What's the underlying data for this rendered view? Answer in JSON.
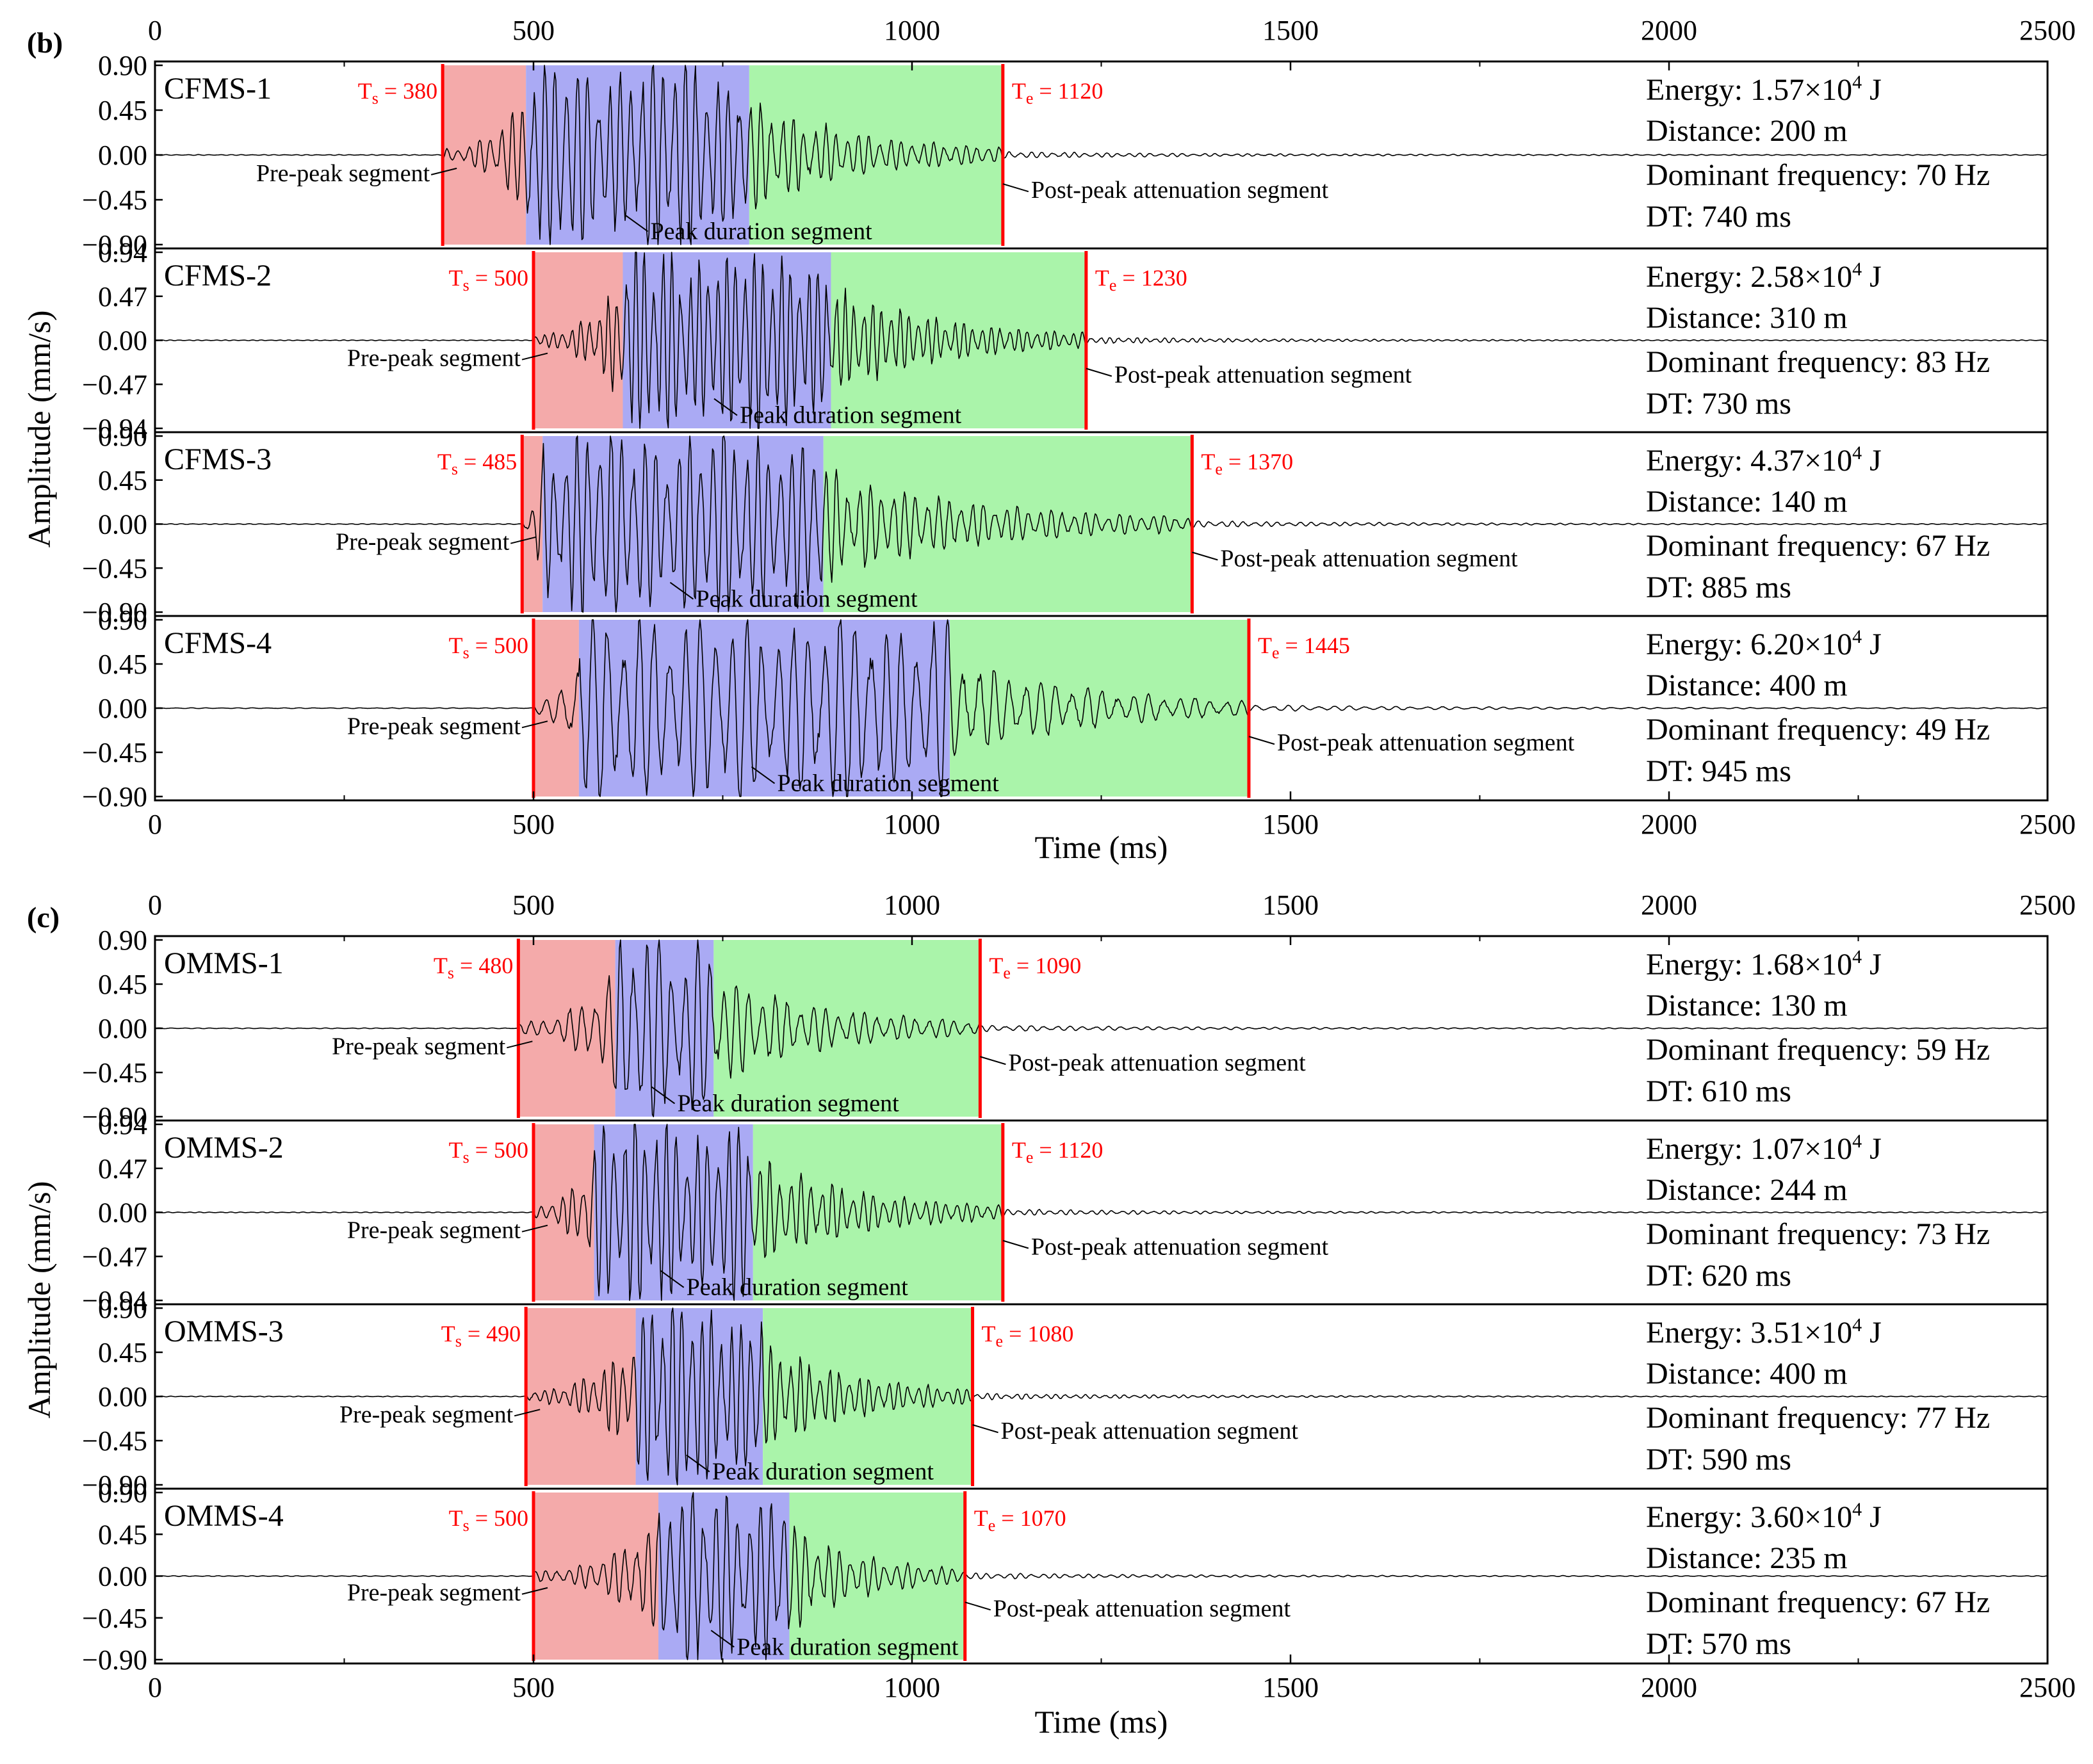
{
  "figures": [
    {
      "label": "(b)",
      "y_axis_title": "Amplitude (mm/s)",
      "x_axis_title": "Time (ms)",
      "x_ticks": [
        "0",
        "500",
        "1000",
        "1500",
        "2000",
        "2500"
      ],
      "panels": [
        {
          "name": "CFMS-1",
          "ts": 380,
          "peak_start": 490,
          "peak_end": 785,
          "te": 1120,
          "ts_label": "T",
          "ts_sub": "s",
          "ts_value": " = 380",
          "te_label": "T",
          "te_sub": "e",
          "te_value": " = 1120",
          "ymax": 0.9,
          "y_ticks": [
            "0.90",
            "0.45",
            "0.00",
            "−0.45",
            "−0.90"
          ],
          "energy_prefix": "Energy: 1.57×10",
          "energy_exp": "4",
          "energy_unit": " J",
          "distance": "Distance: 200 m",
          "freq": "Dominant frequency: 70 Hz",
          "dt": "DT: 740 ms",
          "pre": "Pre-peak segment",
          "peak": "Peak duration segment",
          "post": "Post-peak attenuation segment",
          "f": 70,
          "seed": 3
        },
        {
          "name": "CFMS-2",
          "ts": 500,
          "peak_start": 618,
          "peak_end": 893,
          "te": 1230,
          "ts_label": "T",
          "ts_sub": "s",
          "ts_value": " = 500",
          "te_label": "T",
          "te_sub": "e",
          "te_value": " = 1230",
          "ymax": 0.94,
          "y_ticks": [
            "0.94",
            "0.47",
            "0.00",
            "−0.47",
            "−0.94"
          ],
          "energy_prefix": "Energy: 2.58×10",
          "energy_exp": "4",
          "energy_unit": " J",
          "distance": "Distance: 310 m",
          "freq": "Dominant frequency: 83 Hz",
          "dt": "DT: 730 ms",
          "pre": "Pre-peak segment",
          "peak": "Peak duration segment",
          "post": "Post-peak attenuation segment",
          "f": 83,
          "seed": 7
        },
        {
          "name": "CFMS-3",
          "ts": 485,
          "peak_start": 512,
          "peak_end": 883,
          "te": 1370,
          "ts_label": "T",
          "ts_sub": "s",
          "ts_value": " = 485",
          "te_label": "T",
          "te_sub": "e",
          "te_value": " = 1370",
          "ymax": 0.9,
          "y_ticks": [
            "0.90",
            "0.45",
            "0.00",
            "−0.45",
            "−0.90"
          ],
          "energy_prefix": "Energy: 4.37×10",
          "energy_exp": "4",
          "energy_unit": " J",
          "distance": "Distance: 140 m",
          "freq": "Dominant frequency: 67 Hz",
          "dt": "DT: 885 ms",
          "pre": "Pre-peak segment",
          "peak": "Peak duration segment",
          "post": "Post-peak attenuation segment",
          "f": 67,
          "seed": 11
        },
        {
          "name": "CFMS-4",
          "ts": 500,
          "peak_start": 560,
          "peak_end": 1050,
          "te": 1445,
          "ts_label": "T",
          "ts_sub": "s",
          "ts_value": " = 500",
          "te_label": "T",
          "te_sub": "e",
          "te_value": " = 1445",
          "ymax": 0.9,
          "y_ticks": [
            "0.90",
            "0.45",
            "0.00",
            "−0.45",
            "−0.90"
          ],
          "energy_prefix": "Energy: 6.20×10",
          "energy_exp": "4",
          "energy_unit": " J",
          "distance": "Distance: 400 m",
          "freq": "Dominant frequency: 49 Hz",
          "dt": "DT: 945 ms",
          "pre": "Pre-peak segment",
          "peak": "Peak duration segment",
          "post": "Post-peak attenuation segment",
          "f": 49,
          "seed": 17
        }
      ]
    },
    {
      "label": "(c)",
      "y_axis_title": "Amplitude (mm/s)",
      "x_axis_title": "Time (ms)",
      "x_ticks": [
        "0",
        "500",
        "1000",
        "1500",
        "2000",
        "2500"
      ],
      "panels": [
        {
          "name": "OMMS-1",
          "ts": 480,
          "peak_start": 608,
          "peak_end": 738,
          "te": 1090,
          "ts_label": "T",
          "ts_sub": "s",
          "ts_value": " = 480",
          "te_label": "T",
          "te_sub": "e",
          "te_value": " = 1090",
          "ymax": 0.9,
          "y_ticks": [
            "0.90",
            "0.45",
            "0.00",
            "−0.45",
            "−0.90"
          ],
          "energy_prefix": "Energy: 1.68×10",
          "energy_exp": "4",
          "energy_unit": " J",
          "distance": "Distance: 130 m",
          "freq": "Dominant frequency: 59 Hz",
          "dt": "DT: 610 ms",
          "pre": "Pre-peak segment",
          "peak": "Peak duration segment",
          "post": "Post-peak attenuation segment",
          "f": 59,
          "seed": 23
        },
        {
          "name": "OMMS-2",
          "ts": 500,
          "peak_start": 580,
          "peak_end": 790,
          "te": 1120,
          "ts_label": "T",
          "ts_sub": "s",
          "ts_value": " = 500",
          "te_label": "T",
          "te_sub": "e",
          "te_value": " = 1120",
          "ymax": 0.94,
          "y_ticks": [
            "0.94",
            "0.47",
            "0.00",
            "−0.47",
            "−0.94"
          ],
          "energy_prefix": "Energy: 1.07×10",
          "energy_exp": "4",
          "energy_unit": " J",
          "distance": "Distance: 244 m",
          "freq": "Dominant frequency: 73 Hz",
          "dt": "DT: 620 ms",
          "pre": "Pre-peak segment",
          "peak": "Peak duration segment",
          "post": "Post-peak attenuation segment",
          "f": 73,
          "seed": 29
        },
        {
          "name": "OMMS-3",
          "ts": 490,
          "peak_start": 635,
          "peak_end": 803,
          "te": 1080,
          "ts_label": "T",
          "ts_sub": "s",
          "ts_value": " = 490",
          "te_label": "T",
          "te_sub": "e",
          "te_value": " = 1080",
          "ymax": 0.9,
          "y_ticks": [
            "0.90",
            "0.45",
            "0.00",
            "−0.45",
            "−0.90"
          ],
          "energy_prefix": "Energy: 3.51×10",
          "energy_exp": "4",
          "energy_unit": " J",
          "distance": "Distance: 400 m",
          "freq": "Dominant frequency: 77 Hz",
          "dt": "DT: 590 ms",
          "pre": "Pre-peak segment",
          "peak": "Peak duration segment",
          "post": "Post-peak attenuation segment",
          "f": 77,
          "seed": 31
        },
        {
          "name": "OMMS-4",
          "ts": 500,
          "peak_start": 665,
          "peak_end": 838,
          "te": 1070,
          "ts_label": "T",
          "ts_sub": "s",
          "ts_value": " = 500",
          "te_label": "T",
          "te_sub": "e",
          "te_value": " = 1070",
          "ymax": 0.9,
          "y_ticks": [
            "0.90",
            "0.45",
            "0.00",
            "−0.45",
            "−0.90"
          ],
          "energy_prefix": "Energy: 3.60×10",
          "energy_exp": "4",
          "energy_unit": " J",
          "distance": "Distance: 235 m",
          "freq": "Dominant frequency: 67 Hz",
          "dt": "DT: 570 ms",
          "pre": "Pre-peak segment",
          "peak": "Peak duration segment",
          "post": "Post-peak attenuation segment",
          "f": 67,
          "seed": 37
        }
      ]
    }
  ],
  "chart_data": [
    {
      "type": "line",
      "title": "(b)",
      "xlabel": "Time (ms)",
      "ylabel": "Amplitude (mm/s)",
      "xlim": [
        0,
        2500
      ],
      "series": [
        {
          "name": "CFMS-1",
          "ylim": [
            -0.9,
            0.9
          ],
          "Ts": 380,
          "Te": 1120,
          "energy_J": 15700,
          "distance_m": 200,
          "dominant_frequency_Hz": 70,
          "DT_ms": 740
        },
        {
          "name": "CFMS-2",
          "ylim": [
            -0.94,
            0.94
          ],
          "Ts": 500,
          "Te": 1230,
          "energy_J": 25800,
          "distance_m": 310,
          "dominant_frequency_Hz": 83,
          "DT_ms": 730
        },
        {
          "name": "CFMS-3",
          "ylim": [
            -0.9,
            0.9
          ],
          "Ts": 485,
          "Te": 1370,
          "energy_J": 43700,
          "distance_m": 140,
          "dominant_frequency_Hz": 67,
          "DT_ms": 885
        },
        {
          "name": "CFMS-4",
          "ylim": [
            -0.9,
            0.9
          ],
          "Ts": 500,
          "Te": 1445,
          "energy_J": 62000,
          "distance_m": 400,
          "dominant_frequency_Hz": 49,
          "DT_ms": 945
        }
      ]
    },
    {
      "type": "line",
      "title": "(c)",
      "xlabel": "Time (ms)",
      "ylabel": "Amplitude (mm/s)",
      "xlim": [
        0,
        2500
      ],
      "series": [
        {
          "name": "OMMS-1",
          "ylim": [
            -0.9,
            0.9
          ],
          "Ts": 480,
          "Te": 1090,
          "energy_J": 16800,
          "distance_m": 130,
          "dominant_frequency_Hz": 59,
          "DT_ms": 610
        },
        {
          "name": "OMMS-2",
          "ylim": [
            -0.94,
            0.94
          ],
          "Ts": 500,
          "Te": 1120,
          "energy_J": 10700,
          "distance_m": 244,
          "dominant_frequency_Hz": 73,
          "DT_ms": 620
        },
        {
          "name": "OMMS-3",
          "ylim": [
            -0.9,
            0.9
          ],
          "Ts": 490,
          "Te": 1080,
          "energy_J": 35100,
          "distance_m": 400,
          "dominant_frequency_Hz": 77,
          "DT_ms": 590
        },
        {
          "name": "OMMS-4",
          "ylim": [
            -0.9,
            0.9
          ],
          "Ts": 500,
          "Te": 1070,
          "energy_J": 36000,
          "distance_m": 235,
          "dominant_frequency_Hz": 67,
          "DT_ms": 570
        }
      ]
    }
  ],
  "colors": {
    "pre": "#f4aaaa",
    "peak": "#aaaaf4",
    "post": "#aaf4aa",
    "marker": "#ff0000",
    "trace": "#000000"
  }
}
